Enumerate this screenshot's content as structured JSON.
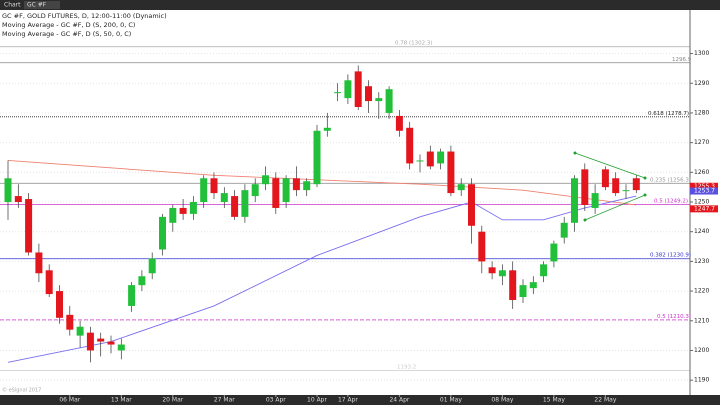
{
  "toolbar": {
    "label": "Chart",
    "symbol": "GC #F"
  },
  "chart_data": {
    "type": "candlestick",
    "legend_lines": [
      "GC #F, GOLD FUTURES, D, 12:00-11:00 (Dynamic)",
      "Moving Average - GC #F, D (S, 200, 0, C)",
      "Moving Average - GC #F, D (S, 50, 0, C)"
    ],
    "footer": "© eSignal 2017",
    "categories": [
      null,
      null,
      null,
      null,
      null,
      null,
      "06 Mar",
      null,
      null,
      null,
      null,
      "13 Mar",
      null,
      null,
      null,
      null,
      "20 Mar",
      null,
      null,
      null,
      null,
      "27 Mar",
      null,
      null,
      null,
      null,
      "03 Apr",
      null,
      null,
      null,
      "10 Apr",
      null,
      null,
      "17 Apr",
      null,
      null,
      null,
      null,
      "24 Apr",
      null,
      null,
      null,
      null,
      "01 May",
      null,
      null,
      null,
      null,
      "08 May",
      null,
      null,
      null,
      null,
      "15 May",
      null,
      null,
      null,
      null,
      "22 May",
      null,
      null,
      null
    ],
    "open": [
      1250,
      1252,
      1251,
      1233,
      1227,
      1220,
      1212,
      1205,
      1206,
      1204,
      1203,
      1200,
      1215,
      1222,
      1226,
      1234,
      1243,
      1248,
      1246,
      1250,
      1258,
      1250,
      1252,
      1245,
      1252,
      1256,
      1258,
      1250,
      1258,
      1254,
      1256,
      1274,
      1287,
      1285,
      1294,
      1289,
      1284,
      1280,
      1279,
      1275,
      1264,
      1267,
      1263,
      1267,
      1254,
      1256,
      1240,
      1228,
      1225,
      1227,
      1218,
      1221,
      1225,
      1230,
      1238,
      1243,
      1261,
      1248,
      1261,
      1258,
      1254,
      1258
    ],
    "high": [
      1264,
      1256,
      1253,
      1236,
      1229,
      1222,
      1215,
      1210,
      1208,
      1206,
      1205,
      1204,
      1223,
      1227,
      1233,
      1246,
      1249,
      1251,
      1252,
      1259,
      1260,
      1255,
      1254,
      1256,
      1258,
      1262,
      1260,
      1259,
      1262,
      1258,
      1276,
      1280,
      1290,
      1293,
      1296,
      1291,
      1287,
      1289,
      1281,
      1277,
      1266,
      1269,
      1268,
      1269,
      1258,
      1258,
      1242,
      1230,
      1229,
      1230,
      1224,
      1225,
      1230,
      1237,
      1245,
      1259,
      1263,
      1256,
      1262,
      1260,
      1256,
      1259
    ],
    "low": [
      1244,
      1248,
      1232,
      1223,
      1218,
      1209,
      1205,
      1201,
      1196,
      1198,
      1199,
      1197,
      1213,
      1220,
      1224,
      1232,
      1240,
      1244,
      1244,
      1248,
      1251,
      1248,
      1244,
      1243,
      1250,
      1254,
      1246,
      1248,
      1252,
      1252,
      1255,
      1272,
      1284,
      1283,
      1281,
      1280,
      1278,
      1278,
      1272,
      1261,
      1260,
      1261,
      1261,
      1252,
      1252,
      1236,
      1226,
      1224,
      1222,
      1214,
      1216,
      1219,
      1223,
      1228,
      1236,
      1240,
      1247,
      1246,
      1254,
      1252,
      1251,
      1253
    ],
    "close": [
      1258,
      1250,
      1233,
      1226,
      1219,
      1211,
      1207,
      1208,
      1200,
      1203,
      1202,
      1202,
      1222,
      1225,
      1231,
      1245,
      1248,
      1246,
      1250,
      1258,
      1253,
      1253,
      1245,
      1254,
      1256,
      1259,
      1248,
      1258,
      1254,
      1257,
      1274,
      1275,
      1287,
      1291,
      1282,
      1284,
      1285,
      1288,
      1274,
      1263,
      1264,
      1262,
      1267,
      1253,
      1256,
      1242,
      1230,
      1226,
      1227,
      1217,
      1222,
      1223,
      1229,
      1236,
      1243,
      1258,
      1249,
      1253,
      1255,
      1253,
      1254,
      1254
    ],
    "up_color": "#22c03a",
    "down_color": "#e3161d",
    "moving_averages": [
      {
        "name": "MA 200",
        "color": "#f08070",
        "x": [
          0,
          20,
          40,
          50,
          61
        ],
        "values": [
          1264,
          1259,
          1256,
          1254,
          1249
        ]
      },
      {
        "name": "MA 50",
        "color": "#7a6ff0",
        "x": [
          0,
          10,
          20,
          30,
          40,
          45,
          48,
          52,
          56,
          61
        ],
        "values": [
          1196,
          1203,
          1215,
          1232,
          1245,
          1250,
          1244,
          1244,
          1248,
          1252
        ]
      }
    ],
    "levels": [
      {
        "label": "0.78 (1302.3)",
        "value": 1302.3,
        "color": "#aaaaaa"
      },
      {
        "label": "1296.9",
        "value": 1296.9,
        "color": "#888888"
      },
      {
        "label": "0.618 (1278.7)",
        "value": 1278.7,
        "color": "#222222"
      },
      {
        "label": "0.235 (1256.3)",
        "value": 1256.3,
        "color": "#999999"
      },
      {
        "label": "0.5 (1249.2)",
        "value": 1249.2,
        "color": "#cc33cc"
      },
      {
        "label": "0.382 (1230.9)",
        "value": 1230.9,
        "color": "#3333cc"
      },
      {
        "label": "0.5 (1210.3)",
        "value": 1210.3,
        "color": "#cc33cc"
      },
      {
        "label": "1193.2",
        "value": 1193.2,
        "color": "#cccccc"
      }
    ],
    "price_tags": [
      {
        "value": 1255.3,
        "color": "#e3161d"
      },
      {
        "value": 1253.7,
        "color": "#5a50e0"
      },
      {
        "value": 1247.7,
        "color": "#e3161d"
      }
    ],
    "ylim": [
      1185,
      1314
    ],
    "yticks": [
      1190,
      1200,
      1210,
      1220,
      1230,
      1240,
      1250,
      1260,
      1270,
      1280,
      1290,
      1300
    ],
    "grid": true
  }
}
